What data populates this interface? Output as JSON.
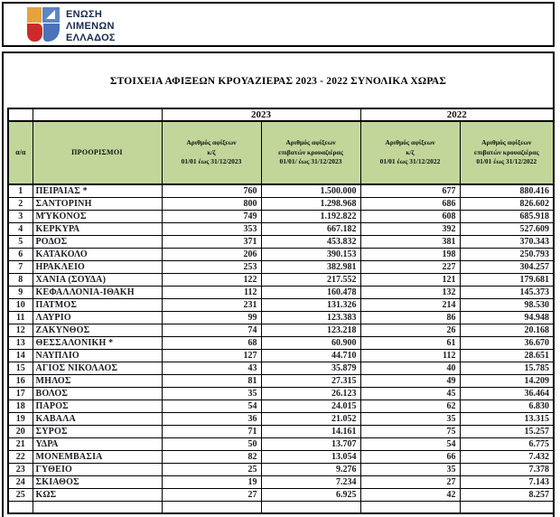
{
  "logo": {
    "org_lines": [
      "ΕΝΩΣΗ",
      "ΛΙΜΕΝΩΝ",
      "ΕΛΛΑΔΟΣ"
    ]
  },
  "title": "ΣΤΟΙΧΕΙΑ ΑΦΙΞΕΩΝ ΚΡΟΥΑΖΙΕΡΑΣ 2023 - 2022 ΣΥΝΟΛΙΚΑ ΧΩΡΑΣ",
  "colors": {
    "header_green": "#c2d69a"
  },
  "table": {
    "year_2023": "2023",
    "year_2022": "2022",
    "col_index": "α/α",
    "col_destination": "ΠΡΟΟΡΙΣΜΟΙ",
    "col_headers": [
      [
        "Αριθμός αφίξεων",
        "κ/ζ",
        "01/01 έως 31/12/2023"
      ],
      [
        "Αριθμός αφίξεων",
        "επιβατών κρουαζιέρας",
        "01/01/ έως 31/12/2023"
      ],
      [
        "Αριθμός αφίξεων",
        "κ/ζ",
        "01/01 έως 31/12/2022"
      ],
      [
        "Αριθμός αφίξεων",
        "επιβατών κρουαζιέρας",
        "01/01 έως 31/12/2022"
      ]
    ],
    "rows": [
      {
        "n": "1",
        "destination": "ΠΕΙΡΑΙΑΣ *",
        "arrivals_2023": "760",
        "passengers_2023": "1.500.000",
        "arrivals_2022": "677",
        "passengers_2022": "880.416"
      },
      {
        "n": "2",
        "destination": "ΣΑΝΤΟΡΙΝΗ",
        "arrivals_2023": "800",
        "passengers_2023": "1.298.968",
        "arrivals_2022": "686",
        "passengers_2022": "826.602"
      },
      {
        "n": "3",
        "destination": "ΜΎΚΟΝΟΣ",
        "arrivals_2023": "749",
        "passengers_2023": "1.192.822",
        "arrivals_2022": "608",
        "passengers_2022": "685.918"
      },
      {
        "n": "4",
        "destination": "ΚΕΡΚΥΡΑ",
        "arrivals_2023": "353",
        "passengers_2023": "667.182",
        "arrivals_2022": "392",
        "passengers_2022": "527.609"
      },
      {
        "n": "5",
        "destination": "ΡΟΔΟΣ",
        "arrivals_2023": "371",
        "passengers_2023": "453.832",
        "arrivals_2022": "381",
        "passengers_2022": "370.343"
      },
      {
        "n": "6",
        "destination": "ΚΑΤΑΚΟΛΟ",
        "arrivals_2023": "206",
        "passengers_2023": "390.153",
        "arrivals_2022": "198",
        "passengers_2022": "250.793"
      },
      {
        "n": "7",
        "destination": "ΗΡΑΚΛΕΙΟ",
        "arrivals_2023": "253",
        "passengers_2023": "382.981",
        "arrivals_2022": "227",
        "passengers_2022": "304.257"
      },
      {
        "n": "8",
        "destination": "ΧΑΝΙΑ (ΣΟΥΔΑ)",
        "arrivals_2023": "122",
        "passengers_2023": "217.552",
        "arrivals_2022": "121",
        "passengers_2022": "179.681"
      },
      {
        "n": "9",
        "destination": "ΚΕΦΑΛΛΟΝΙΑ-ΙΘΑΚΗ",
        "arrivals_2023": "112",
        "passengers_2023": "160.478",
        "arrivals_2022": "132",
        "passengers_2022": "145.373"
      },
      {
        "n": "10",
        "destination": "ΠΑΤΜΟΣ",
        "arrivals_2023": "231",
        "passengers_2023": "131.326",
        "arrivals_2022": "214",
        "passengers_2022": "98.530"
      },
      {
        "n": "11",
        "destination": "ΛΑΥΡΙΟ",
        "arrivals_2023": "99",
        "passengers_2023": "123.383",
        "arrivals_2022": "86",
        "passengers_2022": "94.948"
      },
      {
        "n": "12",
        "destination": "ΖΑΚΥΝΘΟΣ",
        "arrivals_2023": "74",
        "passengers_2023": "123.218",
        "arrivals_2022": "26",
        "passengers_2022": "20.168"
      },
      {
        "n": "13",
        "destination": "ΘΕΣΣΑΛΟΝΙΚΗ *",
        "arrivals_2023": "68",
        "passengers_2023": "60.900",
        "arrivals_2022": "61",
        "passengers_2022": "36.670"
      },
      {
        "n": "14",
        "destination": "ΝΑΥΠΛΙΟ",
        "arrivals_2023": "127",
        "passengers_2023": "44.710",
        "arrivals_2022": "112",
        "passengers_2022": "28.651"
      },
      {
        "n": "15",
        "destination": "ΑΓΙΟΣ ΝΙΚΟΛΑΟΣ",
        "arrivals_2023": "43",
        "passengers_2023": "35.879",
        "arrivals_2022": "40",
        "passengers_2022": "15.785"
      },
      {
        "n": "16",
        "destination": "ΜΗΛΟΣ",
        "arrivals_2023": "81",
        "passengers_2023": "27.315",
        "arrivals_2022": "49",
        "passengers_2022": "14.209"
      },
      {
        "n": "17",
        "destination": "ΒΟΛΟΣ",
        "arrivals_2023": "35",
        "passengers_2023": "26.123",
        "arrivals_2022": "45",
        "passengers_2022": "36.464"
      },
      {
        "n": "18",
        "destination": "ΠΑΡΟΣ",
        "arrivals_2023": "54",
        "passengers_2023": "24.015",
        "arrivals_2022": "62",
        "passengers_2022": "6.830"
      },
      {
        "n": "19",
        "destination": "ΚΑΒΑΛΑ",
        "arrivals_2023": "36",
        "passengers_2023": "21.052",
        "arrivals_2022": "35",
        "passengers_2022": "13.315"
      },
      {
        "n": "20",
        "destination": "ΣΥΡΟΣ",
        "arrivals_2023": "71",
        "passengers_2023": "14.161",
        "arrivals_2022": "75",
        "passengers_2022": "15.257"
      },
      {
        "n": "21",
        "destination": "ΥΔΡΑ",
        "arrivals_2023": "50",
        "passengers_2023": "13.707",
        "arrivals_2022": "54",
        "passengers_2022": "6.775"
      },
      {
        "n": "22",
        "destination": "ΜΟΝΕΜΒΑΣΙΑ",
        "arrivals_2023": "82",
        "passengers_2023": "13.054",
        "arrivals_2022": "66",
        "passengers_2022": "7.432"
      },
      {
        "n": "23",
        "destination": "ΓΥΘΕΙΟ",
        "arrivals_2023": "25",
        "passengers_2023": "9.276",
        "arrivals_2022": "35",
        "passengers_2022": "7.378"
      },
      {
        "n": "24",
        "destination": "ΣΚΙΑΘΟΣ",
        "arrivals_2023": "19",
        "passengers_2023": "7.234",
        "arrivals_2022": "27",
        "passengers_2022": "7.143"
      },
      {
        "n": "25",
        "destination": "ΚΩΣ",
        "arrivals_2023": "27",
        "passengers_2023": "6.925",
        "arrivals_2022": "42",
        "passengers_2022": "8.257"
      }
    ]
  }
}
